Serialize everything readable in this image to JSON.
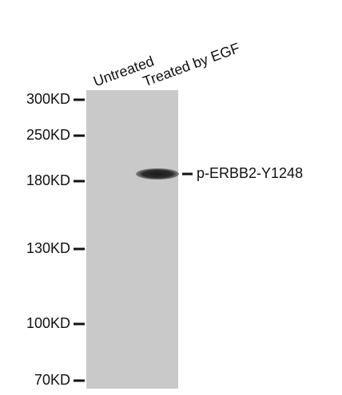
{
  "lanes": [
    "Untreated",
    "Treated by EGF"
  ],
  "markers": [
    "300KD",
    "250KD",
    "180KD",
    "130KD",
    "100KD",
    "70KD"
  ],
  "band_label": "p-ERBB2-Y1248"
}
